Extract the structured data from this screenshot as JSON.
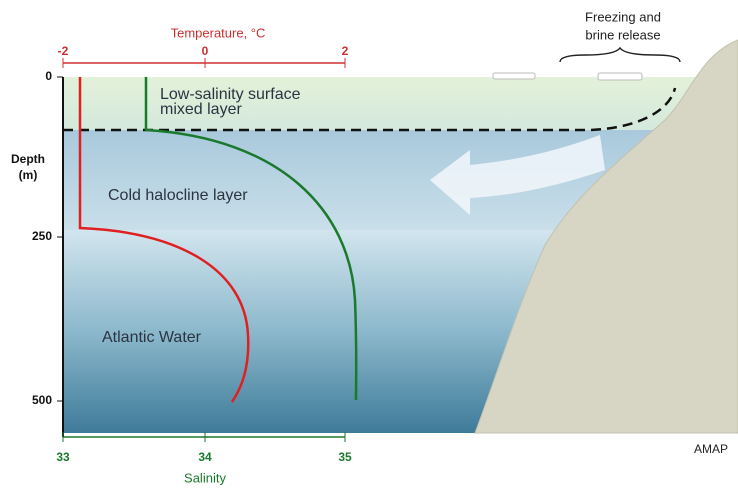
{
  "temperature_axis": {
    "title": "Temperature, °C",
    "ticks": [
      "-2",
      "0",
      "2"
    ]
  },
  "salinity_axis": {
    "title": "Salinity",
    "ticks": [
      "33",
      "34",
      "35"
    ]
  },
  "depth_axis": {
    "title_lines": [
      "Depth",
      "(m)"
    ],
    "ticks": [
      "0",
      "250",
      "500"
    ]
  },
  "labels": {
    "surface_layer": [
      "Low-salinity surface",
      "mixed layer"
    ],
    "halocline": "Cold halocline layer",
    "atlantic": "Atlantic Water",
    "freezing": [
      "Freezing and",
      "brine release"
    ],
    "credit": "AMAP"
  }
}
